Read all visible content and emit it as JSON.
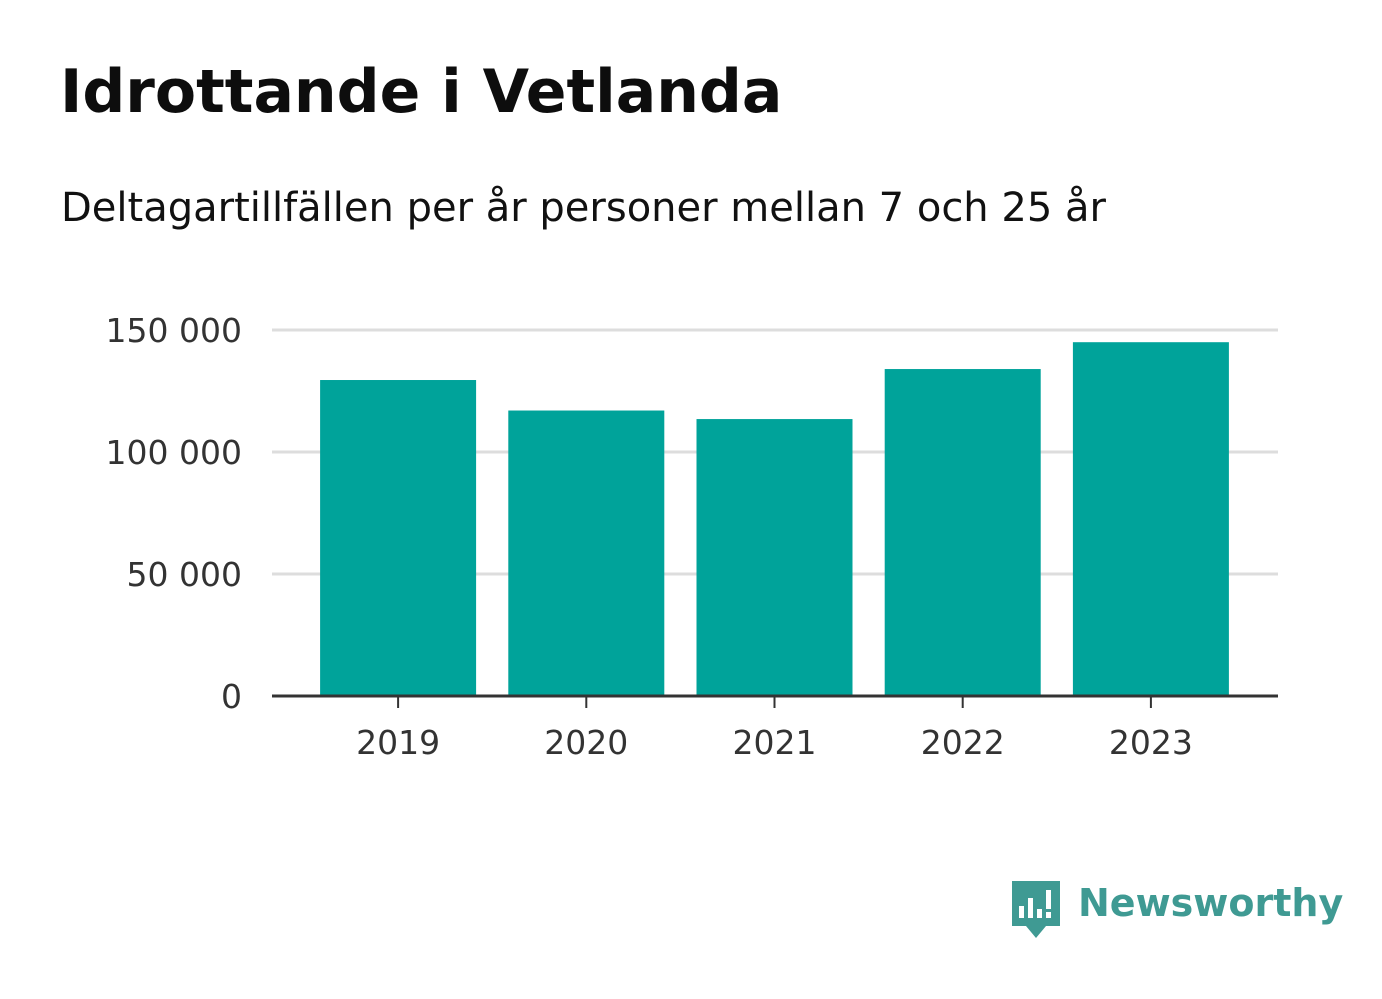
{
  "header": {
    "title": "Idrottande i Vetlanda",
    "subtitle": "Deltagartillfällen per år personer mellan 7 och 25 år"
  },
  "chart_data": {
    "type": "bar",
    "categories": [
      "2019",
      "2020",
      "2021",
      "2022",
      "2023"
    ],
    "values": [
      129500,
      117000,
      113500,
      134000,
      145000
    ],
    "ylim": [
      0,
      150000
    ],
    "yticks": [
      0,
      50000,
      100000,
      150000
    ],
    "ytick_labels": [
      "0",
      "50 000",
      "100 000",
      "150 000"
    ],
    "grid": true,
    "legend": "none",
    "colors": {
      "bar": "#00a39a",
      "grid": "#dddddd",
      "axis": "#333333"
    }
  },
  "logo": {
    "text": "Newsworthy",
    "icon": "newsworthy-logo-icon",
    "color": "#3f9a93"
  }
}
